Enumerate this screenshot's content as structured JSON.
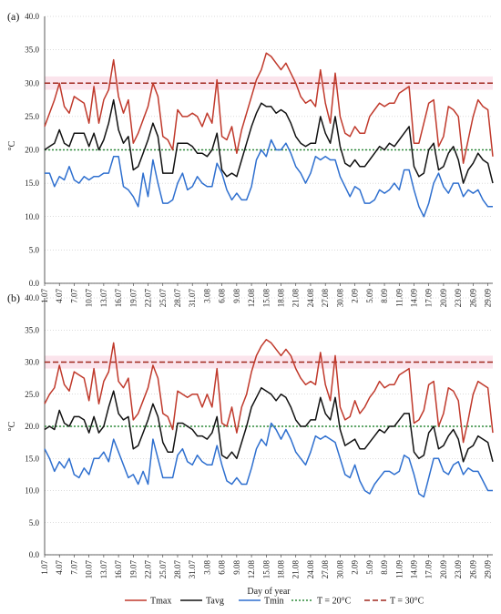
{
  "chart_data": [
    {
      "panel_label": "(a)",
      "type": "line",
      "ylabel": "°C",
      "ylim": [
        0,
        40
      ],
      "yticks": [
        "0.0",
        "5.0",
        "10.0",
        "15.0",
        "20.0",
        "25.0",
        "30.0",
        "35.0",
        "40.0"
      ],
      "x_ticks": [
        "1.07",
        "4.07",
        "7.07",
        "10.07",
        "13.07",
        "16.07",
        "19.07",
        "22.07",
        "25.07",
        "28.07",
        "31.07",
        "3.08",
        "6.08",
        "9.08",
        "12.08",
        "15.08",
        "18.08",
        "21.08",
        "24.08",
        "27.08",
        "30.08",
        "2.09",
        "5.09",
        "8.09",
        "11.09",
        "14.09",
        "17.09",
        "20.09",
        "23.09",
        "26.09",
        "29.09"
      ],
      "series": [
        {
          "name": "Tmax",
          "color": "#c0392b",
          "values": [
            23.5,
            25.5,
            27.5,
            30,
            26.5,
            25.5,
            28,
            27.5,
            27,
            24,
            29.5,
            24,
            27.5,
            29,
            33.5,
            28,
            25.5,
            27.5,
            21,
            22.5,
            24.5,
            26.5,
            30,
            28,
            22,
            21.5,
            20,
            26,
            25,
            25,
            25.5,
            25,
            23.5,
            25.5,
            24,
            30.5,
            22,
            21.5,
            23.5,
            19.5,
            23,
            25.5,
            28,
            30.5,
            32,
            34.5,
            34,
            33,
            32,
            33,
            31.5,
            30,
            28,
            27,
            27.5,
            26.5,
            32,
            27,
            24,
            31.5,
            25,
            22.5,
            22,
            23.5,
            22.5,
            22.5,
            25,
            26,
            27,
            26.5,
            27,
            27,
            28.5,
            29,
            29.5,
            21,
            21,
            24,
            27,
            27.5,
            20.5,
            22,
            26.5,
            26,
            25,
            18,
            21.5,
            25,
            27.5,
            26.5,
            26,
            19
          ]
        },
        {
          "name": "Tavg",
          "color": "#111111",
          "values": [
            20,
            20.5,
            21,
            23,
            21,
            20.5,
            22.5,
            22.5,
            22.5,
            20.5,
            22.5,
            20,
            21.5,
            24,
            27.5,
            23,
            21,
            22,
            17,
            17.5,
            19.5,
            21.5,
            24,
            22,
            16.5,
            16.5,
            16.5,
            21,
            21,
            21,
            20.5,
            19.5,
            19.5,
            19,
            20,
            22.5,
            17,
            16,
            16.5,
            16,
            18.5,
            21,
            23.5,
            25.5,
            27,
            26.5,
            26.5,
            25.5,
            26,
            25.5,
            24,
            22,
            21,
            20.5,
            21,
            21,
            25,
            22.5,
            21,
            25,
            20.5,
            18,
            17.5,
            18.5,
            17.5,
            17.5,
            18.5,
            19.5,
            20.5,
            20,
            21,
            20.5,
            21.5,
            22.5,
            23.5,
            17.5,
            16,
            16.5,
            20,
            21,
            17,
            17.5,
            19.5,
            20.5,
            18.5,
            15,
            17,
            18,
            19.5,
            18.5,
            18,
            15
          ]
        },
        {
          "name": "Tmin",
          "color": "#2e6fcf",
          "values": [
            16.5,
            16.5,
            14.5,
            16,
            15.5,
            17.5,
            15.5,
            15,
            16,
            15.5,
            16,
            16,
            16.5,
            16.5,
            19,
            19,
            14.5,
            14,
            13,
            11.5,
            16.5,
            13,
            18.5,
            15,
            12,
            12,
            12.5,
            15,
            16.5,
            14,
            14.5,
            16,
            15,
            14.5,
            14.5,
            18,
            16.5,
            14,
            12.5,
            13.5,
            12.5,
            12.5,
            14.5,
            18.5,
            20,
            19,
            21.5,
            20,
            20,
            21,
            19.5,
            17.5,
            16.5,
            15,
            16.5,
            19,
            18.5,
            19,
            18.5,
            18.5,
            16,
            14.5,
            13,
            14.5,
            14,
            12,
            12,
            12.5,
            14,
            13.5,
            14,
            15,
            14,
            17,
            17,
            14,
            11.5,
            10,
            12,
            15,
            16.5,
            14.5,
            13.5,
            15,
            15,
            13,
            14,
            13.5,
            14,
            12.5,
            11.5,
            11.5
          ]
        }
      ],
      "reference_lines": [
        {
          "name": "T = 20°C",
          "value": 20,
          "color": "#2e8b3a",
          "style": "dotted"
        },
        {
          "name": "T = 30°C",
          "value": 30,
          "color": "#a0281e",
          "style": "dashed"
        }
      ]
    },
    {
      "panel_label": "(b)",
      "type": "line",
      "ylabel": "°C",
      "xlabel": "Day of year",
      "ylim": [
        0,
        40
      ],
      "yticks": [
        "0.0",
        "5.0",
        "10.0",
        "15.0",
        "20.0",
        "25.0",
        "30.0",
        "35.0",
        "40.0"
      ],
      "x_ticks": [
        "1.07",
        "4.07",
        "7.07",
        "10.07",
        "13.07",
        "16.07",
        "19.07",
        "22.07",
        "25.07",
        "28.07",
        "31.07",
        "3.08",
        "6.08",
        "9.08",
        "12.08",
        "15.08",
        "18.08",
        "21.08",
        "24.08",
        "27.08",
        "30.08",
        "2.09",
        "5.09",
        "8.09",
        "11.09",
        "14.09",
        "17.09",
        "20.09",
        "23.09",
        "26.09",
        "29.09"
      ],
      "series": [
        {
          "name": "Tmax",
          "color": "#c0392b",
          "values": [
            23.5,
            25,
            26,
            29.5,
            26.5,
            25.5,
            28.5,
            28,
            27.5,
            24,
            29,
            23.5,
            27,
            28.5,
            33,
            27,
            26,
            27.5,
            21,
            22,
            24,
            26,
            29.5,
            27.5,
            22,
            21.5,
            19.5,
            25.5,
            25,
            24.5,
            25,
            25,
            23,
            25,
            23,
            29,
            20.5,
            20,
            23,
            19,
            23,
            25,
            28.5,
            31,
            32.5,
            33.5,
            33,
            32,
            31,
            32,
            31,
            29,
            27.5,
            26.5,
            27,
            26.5,
            31.5,
            26.5,
            24,
            31,
            23,
            21,
            21.5,
            24,
            22,
            23,
            24.5,
            25.5,
            27,
            26,
            26.5,
            26.5,
            28,
            28.5,
            29,
            20.5,
            21,
            22.5,
            26.5,
            27,
            20,
            22,
            26,
            25.5,
            24,
            17.5,
            21,
            25,
            27,
            26.5,
            26,
            19
          ]
        },
        {
          "name": "Tavg",
          "color": "#111111",
          "values": [
            19.5,
            20,
            19.5,
            22.5,
            20.5,
            20,
            21.5,
            21.5,
            21,
            19,
            21.5,
            19,
            20,
            23,
            25.5,
            22,
            21,
            21.5,
            16.5,
            17,
            19,
            21,
            23.5,
            21.5,
            17.5,
            16,
            16,
            20.5,
            20.5,
            20,
            19.5,
            18.5,
            18.5,
            18,
            19,
            21.5,
            15.5,
            15,
            16,
            15,
            17.5,
            20,
            23,
            24.5,
            26,
            25.5,
            25,
            24,
            25,
            24.5,
            23,
            21,
            20,
            20,
            21,
            21,
            24.5,
            22,
            21,
            24.5,
            19.5,
            17,
            17.5,
            18,
            16.5,
            16.5,
            17.5,
            18.5,
            19.5,
            19,
            20,
            20,
            21,
            22,
            22,
            16,
            15,
            15.5,
            19,
            20,
            16.5,
            17,
            18.5,
            19.5,
            18,
            14.5,
            16.5,
            17,
            18.5,
            18,
            17.5,
            14.5
          ]
        },
        {
          "name": "Tmin",
          "color": "#2e6fcf",
          "values": [
            16.5,
            15,
            13,
            14.5,
            13.5,
            15,
            12.5,
            12,
            13.5,
            12.5,
            15,
            15,
            16,
            14.5,
            18,
            16,
            14,
            12,
            12.5,
            11,
            13,
            11,
            18,
            15,
            12,
            12,
            12,
            15.5,
            16.5,
            14.5,
            14,
            15.5,
            14.5,
            14,
            14,
            17,
            14,
            11.5,
            11,
            12,
            11,
            11,
            13.5,
            16.5,
            18,
            17,
            20.5,
            19.5,
            18,
            19.5,
            18,
            16,
            15,
            14,
            16,
            18.5,
            18,
            18.5,
            18,
            17.5,
            15,
            12.5,
            12,
            14,
            11.5,
            10,
            9.5,
            11,
            12,
            13,
            13,
            12.5,
            13,
            15.5,
            15,
            12.5,
            9.5,
            9,
            12,
            15,
            15,
            13,
            12.5,
            14,
            14.5,
            12.5,
            13.5,
            13,
            13,
            11.5,
            10,
            10
          ]
        }
      ],
      "reference_lines": [
        {
          "name": "T = 20°C",
          "value": 20,
          "color": "#2e8b3a",
          "style": "dotted"
        },
        {
          "name": "T = 30°C",
          "value": 30,
          "color": "#a0281e",
          "style": "dashed"
        }
      ]
    }
  ],
  "legend": [
    {
      "label": "Tmax",
      "color": "#c0392b",
      "style": "solid"
    },
    {
      "label": "Tavg",
      "color": "#111111",
      "style": "solid"
    },
    {
      "label": "Tmin",
      "color": "#2e6fcf",
      "style": "solid"
    },
    {
      "label": "T = 20°C",
      "color": "#2e8b3a",
      "style": "dotted"
    },
    {
      "label": "T = 30°C",
      "color": "#a0281e",
      "style": "dashed"
    }
  ]
}
